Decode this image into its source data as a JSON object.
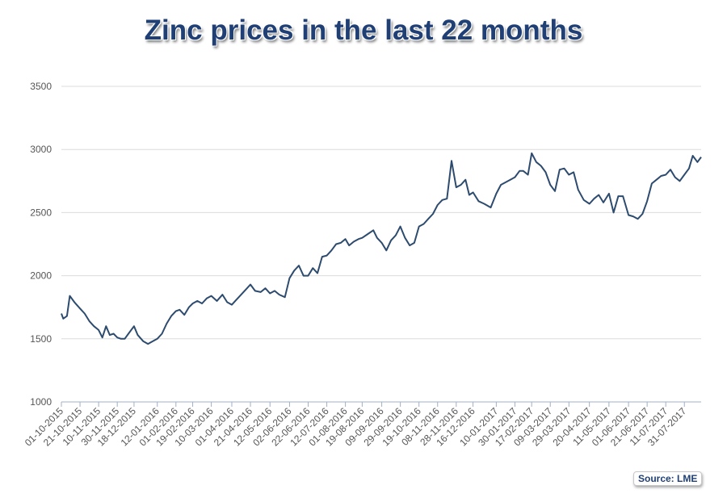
{
  "chart_data": {
    "type": "line",
    "title": "Zinc prices in the last 22 months",
    "source": "Source: LME",
    "ylim": [
      1000,
      3500
    ],
    "yticks": [
      1000,
      1500,
      2000,
      2500,
      3000,
      3500
    ],
    "grid": true,
    "line_color": "#2d4b6e",
    "xlabels": [
      "01-10-2015",
      "21-10-2015",
      "10-11-2015",
      "30-11-2015",
      "18-12-2015",
      "12-01-2016",
      "01-02-2016",
      "19-02-2016",
      "10-03-2016",
      "01-04-2016",
      "21-04-2016",
      "12-05-2016",
      "02-06-2016",
      "22-06-2016",
      "12-07-2016",
      "01-08-2016",
      "19-08-2016",
      "09-09-2016",
      "29-09-2016",
      "19-10-2016",
      "08-11-2016",
      "28-11-2016",
      "16-12-2016",
      "10-01-2017",
      "30-01-2017",
      "17-02-2017",
      "09-03-2017",
      "29-03-2017",
      "20-04-2017",
      "11-05-2017",
      "01-06-2017",
      "21-06-2017",
      "11-07-2017",
      "31-07-2017"
    ],
    "series": [
      {
        "x": [
          "01-10-2015",
          "03-10-2015",
          "07-10-2015",
          "10-10-2015",
          "15-10-2015",
          "21-10-2015",
          "26-10-2015",
          "31-10-2015",
          "05-11-2015",
          "10-11-2015",
          "14-11-2015",
          "18-11-2015",
          "22-11-2015",
          "26-11-2015",
          "30-11-2015",
          "04-12-2015",
          "08-12-2015",
          "12-12-2015",
          "18-12-2015",
          "22-12-2015",
          "28-12-2015",
          "02-01-2016",
          "07-01-2016",
          "12-01-2016",
          "17-01-2016",
          "22-01-2016",
          "27-01-2016",
          "01-02-2016",
          "05-02-2016",
          "10-02-2016",
          "15-02-2016",
          "19-02-2016",
          "24-02-2016",
          "29-02-2016",
          "05-03-2016",
          "10-03-2016",
          "16-03-2016",
          "22-03-2016",
          "27-03-2016",
          "01-04-2016",
          "06-04-2016",
          "11-04-2016",
          "16-04-2016",
          "21-04-2016",
          "26-04-2016",
          "02-05-2016",
          "07-05-2016",
          "12-05-2016",
          "17-05-2016",
          "22-05-2016",
          "28-05-2016",
          "02-06-2016",
          "07-06-2016",
          "12-06-2016",
          "17-06-2016",
          "22-06-2016",
          "27-06-2016",
          "02-07-2016",
          "07-07-2016",
          "12-07-2016",
          "17-07-2016",
          "22-07-2016",
          "27-07-2016",
          "01-08-2016",
          "05-08-2016",
          "10-08-2016",
          "15-08-2016",
          "19-08-2016",
          "25-08-2016",
          "31-08-2016",
          "04-09-2016",
          "09-09-2016",
          "14-09-2016",
          "19-09-2016",
          "24-09-2016",
          "29-09-2016",
          "04-10-2016",
          "09-10-2016",
          "14-10-2016",
          "19-10-2016",
          "24-10-2016",
          "29-10-2016",
          "03-11-2016",
          "08-11-2016",
          "13-11-2016",
          "18-11-2016",
          "23-11-2016",
          "28-11-2016",
          "03-12-2016",
          "08-12-2016",
          "12-12-2016",
          "16-12-2016",
          "22-12-2016",
          "28-12-2016",
          "04-01-2017",
          "10-01-2017",
          "15-01-2017",
          "20-01-2017",
          "25-01-2017",
          "30-01-2017",
          "04-02-2017",
          "08-02-2017",
          "13-02-2017",
          "17-02-2017",
          "22-02-2017",
          "27-02-2017",
          "04-03-2017",
          "09-03-2017",
          "14-03-2017",
          "19-03-2017",
          "24-03-2017",
          "29-03-2017",
          "03-04-2017",
          "08-04-2017",
          "14-04-2017",
          "20-04-2017",
          "25-04-2017",
          "30-04-2017",
          "05-05-2017",
          "11-05-2017",
          "16-05-2017",
          "21-05-2017",
          "26-05-2017",
          "01-06-2017",
          "06-06-2017",
          "11-06-2017",
          "16-06-2017",
          "21-06-2017",
          "26-06-2017",
          "01-07-2017",
          "06-07-2017",
          "11-07-2017",
          "16-07-2017",
          "21-07-2017",
          "26-07-2017",
          "31-07-2017",
          "05-08-2017",
          "09-08-2017",
          "14-08-2017",
          "18-08-2017"
        ],
        "values": [
          1700,
          1660,
          1680,
          1840,
          1790,
          1740,
          1700,
          1640,
          1600,
          1570,
          1510,
          1600,
          1530,
          1540,
          1510,
          1500,
          1500,
          1540,
          1600,
          1530,
          1480,
          1460,
          1480,
          1500,
          1540,
          1620,
          1680,
          1720,
          1730,
          1690,
          1750,
          1780,
          1800,
          1780,
          1820,
          1840,
          1800,
          1850,
          1790,
          1770,
          1810,
          1850,
          1890,
          1930,
          1880,
          1870,
          1900,
          1860,
          1880,
          1850,
          1830,
          1980,
          2040,
          2080,
          2000,
          2000,
          2060,
          2020,
          2150,
          2160,
          2200,
          2250,
          2260,
          2290,
          2240,
          2270,
          2290,
          2300,
          2330,
          2360,
          2300,
          2260,
          2200,
          2280,
          2320,
          2390,
          2300,
          2240,
          2260,
          2390,
          2410,
          2450,
          2490,
          2560,
          2600,
          2610,
          2910,
          2700,
          2720,
          2760,
          2640,
          2660,
          2590,
          2570,
          2540,
          2650,
          2720,
          2740,
          2760,
          2780,
          2830,
          2830,
          2800,
          2970,
          2900,
          2870,
          2820,
          2720,
          2670,
          2840,
          2850,
          2800,
          2820,
          2680,
          2600,
          2570,
          2610,
          2640,
          2580,
          2650,
          2500,
          2630,
          2630,
          2480,
          2470,
          2450,
          2490,
          2590,
          2730,
          2760,
          2790,
          2800,
          2840,
          2780,
          2750,
          2800,
          2850,
          2950,
          2900,
          2940
        ]
      }
    ]
  }
}
